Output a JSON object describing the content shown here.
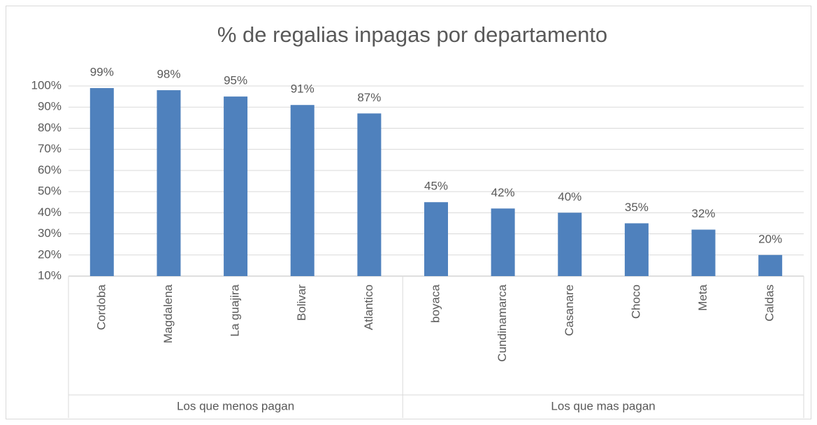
{
  "chart_data": {
    "type": "bar",
    "title": "% de regalias inpagas por departamento",
    "color": "#4f81bd",
    "grid": true,
    "ylim": [
      10,
      100
    ],
    "yticks": [
      {
        "value": 10,
        "label": "10%"
      },
      {
        "value": 20,
        "label": "20%"
      },
      {
        "value": 30,
        "label": "30%"
      },
      {
        "value": 40,
        "label": "40%"
      },
      {
        "value": 50,
        "label": "50%"
      },
      {
        "value": 60,
        "label": "60%"
      },
      {
        "value": 70,
        "label": "70%"
      },
      {
        "value": 80,
        "label": "80%"
      },
      {
        "value": 90,
        "label": "90%"
      },
      {
        "value": 100,
        "label": "100%"
      }
    ],
    "groups": [
      {
        "name": "Los que menos pagan",
        "categories": [
          "Cordoba",
          "Magdalena",
          "La guajira",
          "Bolivar",
          "Atlantico"
        ],
        "values": [
          99,
          98,
          95,
          91,
          87
        ],
        "value_labels": [
          "99%",
          "98%",
          "95%",
          "91%",
          "87%"
        ]
      },
      {
        "name": "Los que mas pagan",
        "categories": [
          "boyaca",
          "Cundinamarca",
          "Casanare",
          "Choco",
          "Meta",
          "Caldas"
        ],
        "values": [
          45,
          42,
          40,
          35,
          32,
          20
        ],
        "value_labels": [
          "45%",
          "42%",
          "40%",
          "35%",
          "32%",
          "20%"
        ]
      }
    ]
  }
}
